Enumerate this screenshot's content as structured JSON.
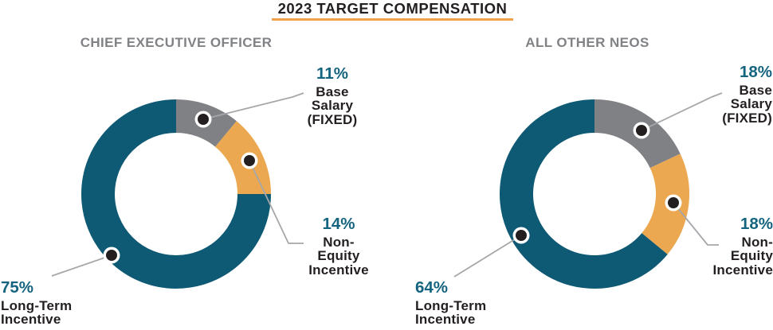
{
  "title": "2023 TARGET COMPENSATION",
  "palette": {
    "teal": "#0E5A74",
    "orange": "#ECA850",
    "gray": "#7F8184"
  },
  "accents": {
    "underline": "#F0A24B",
    "pct_text": "#15647F",
    "label_text": "#231F20",
    "header_text": "#808285",
    "leader_line": "#A5A7AA",
    "dot_fill": "#231F20",
    "dot_ring": "#FFFFFF"
  },
  "chart_data": [
    {
      "type": "pie",
      "subtype": "donut",
      "key": "ceo",
      "title": "CHIEF EXECUTIVE OFFICER",
      "categories": [
        "Base Salary (FIXED)",
        "Non-Equity Incentive",
        "Long-Term Incentive"
      ],
      "values": [
        11,
        14,
        75
      ],
      "slices": [
        {
          "key": "base-salary",
          "value": 11,
          "pct_label": "11%",
          "label": "Base\nSalary\n(FIXED)",
          "color": "gray"
        },
        {
          "key": "non-equity-incentive",
          "value": 14,
          "pct_label": "14%",
          "label": "Non-\nEquity\nIncentive",
          "color": "orange"
        },
        {
          "key": "long-term-incentive",
          "value": 75,
          "pct_label": "75%",
          "label": "Long-Term\nIncentive",
          "color": "teal"
        }
      ]
    },
    {
      "type": "pie",
      "subtype": "donut",
      "key": "neos",
      "title": "ALL OTHER NEOS",
      "categories": [
        "Base Salary (FIXED)",
        "Non-Equity Incentive",
        "Long-Term Incentive"
      ],
      "values": [
        18,
        18,
        64
      ],
      "slices": [
        {
          "key": "base-salary",
          "value": 18,
          "pct_label": "18%",
          "label": "Base\nSalary\n(FIXED)",
          "color": "gray"
        },
        {
          "key": "non-equity-incentive",
          "value": 18,
          "pct_label": "18%",
          "label": "Non-\nEquity\nIncentive",
          "color": "orange"
        },
        {
          "key": "long-term-incentive",
          "value": 64,
          "pct_label": "64%",
          "label": "Long-Term\nIncentive",
          "color": "teal"
        }
      ]
    }
  ]
}
